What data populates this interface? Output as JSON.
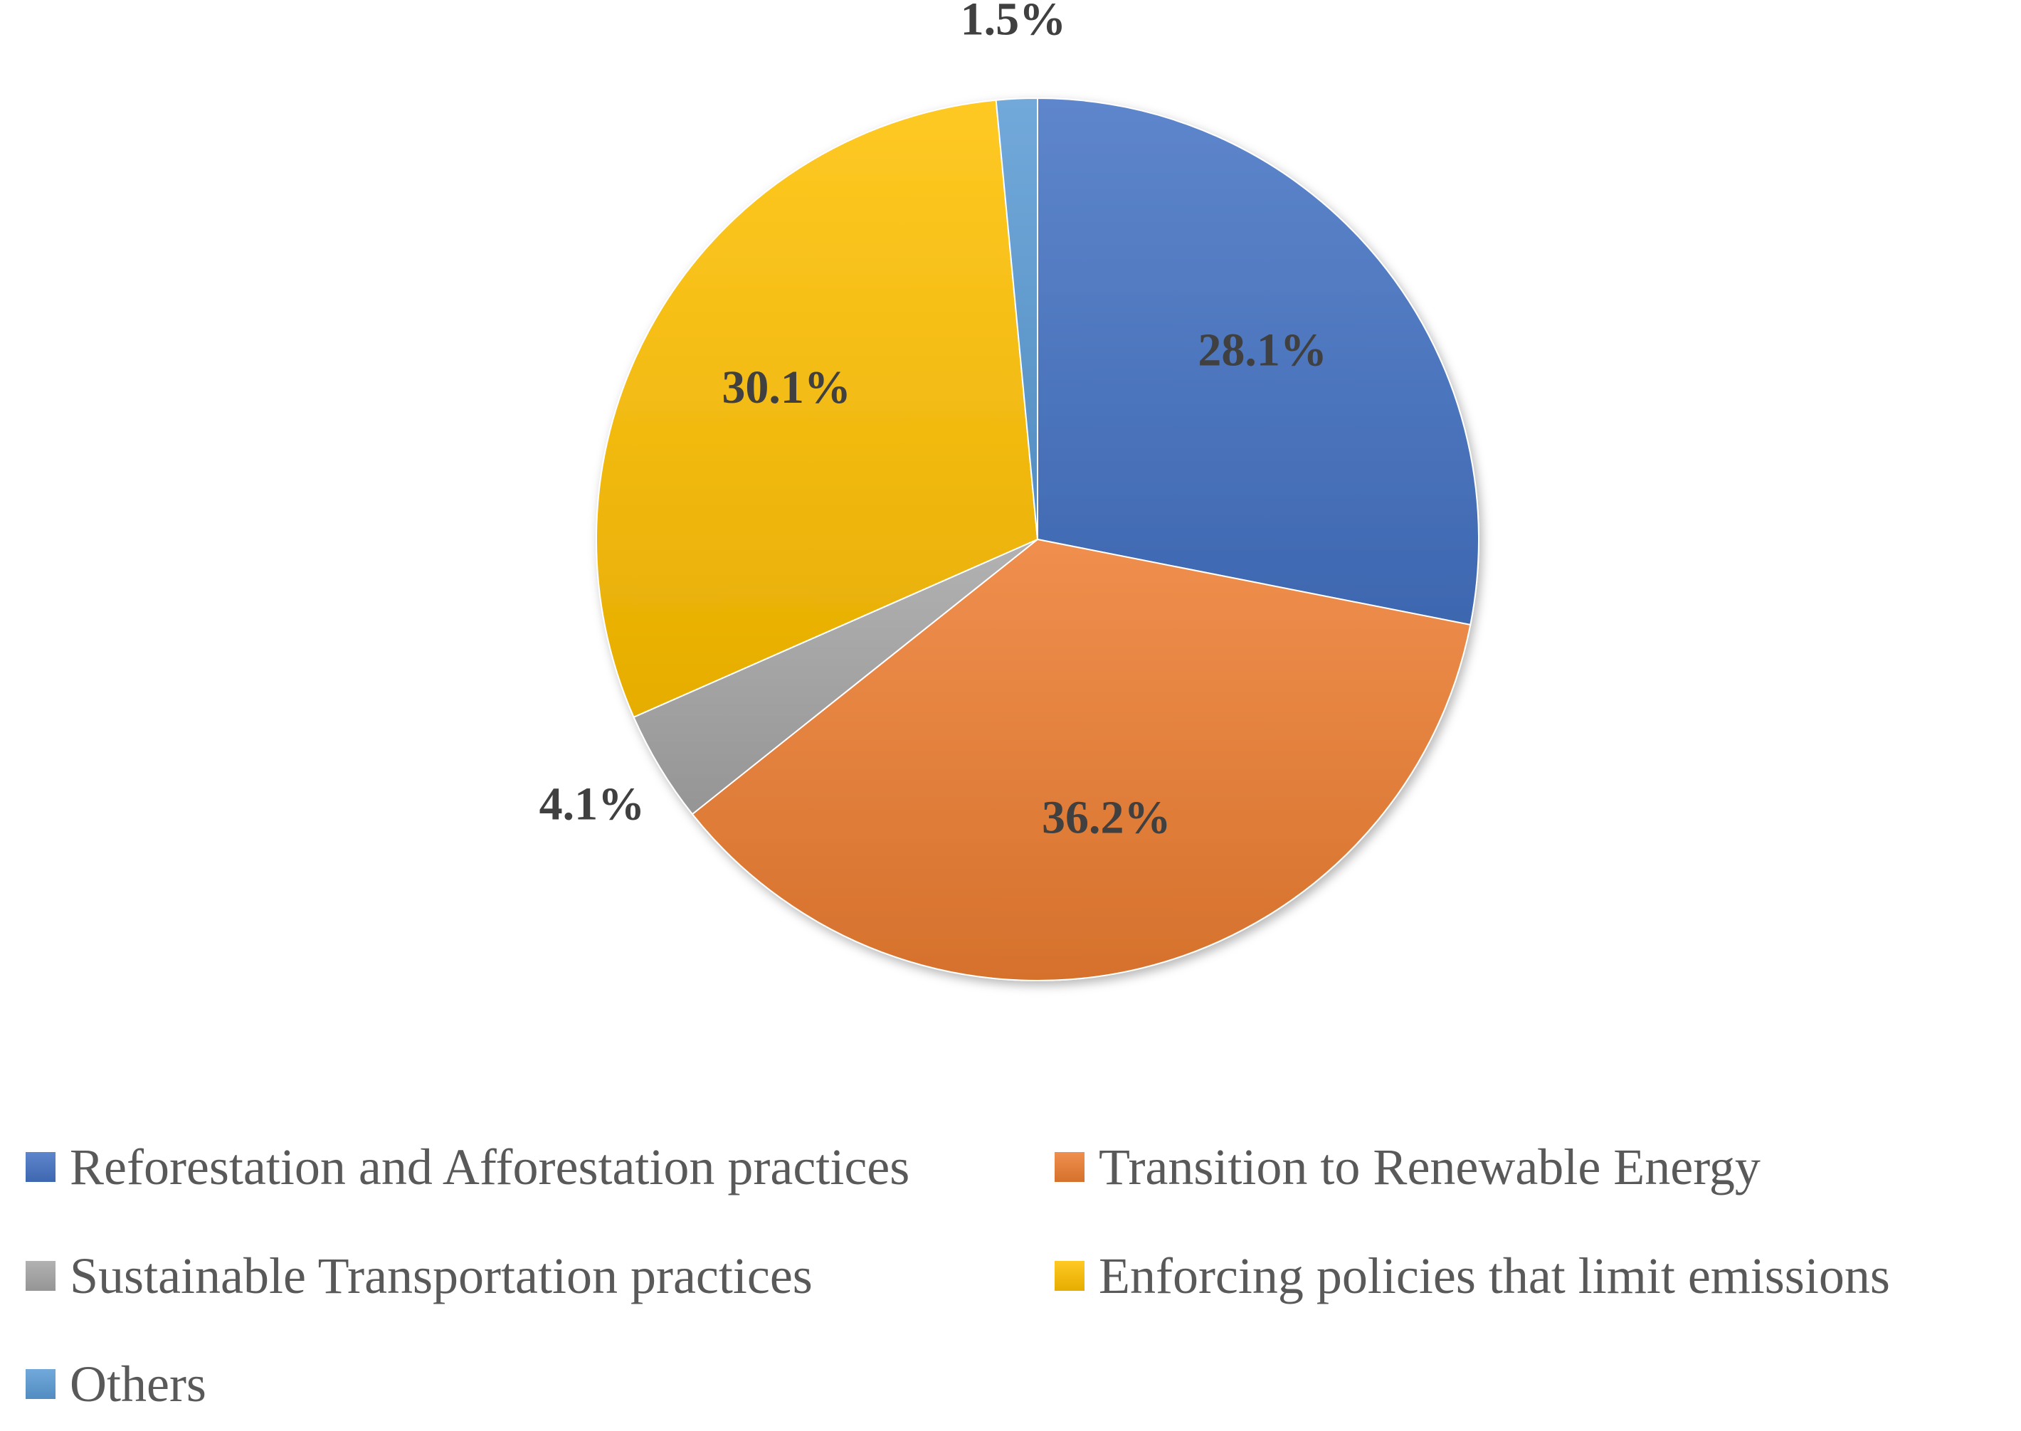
{
  "chart_data": {
    "type": "pie",
    "title": "",
    "slices": [
      {
        "label": "Reforestation and Afforestation practices",
        "value": 28.1,
        "display": "28.1%",
        "color": "#4472C4"
      },
      {
        "label": "Transition to Renewable Energy",
        "value": 36.2,
        "display": "36.2%",
        "color": "#ED7D31"
      },
      {
        "label": "Sustainable Transportation practices",
        "value": 4.1,
        "display": "4.1%",
        "color": "#A5A5A5"
      },
      {
        "label": "Enforcing policies that limit emissions",
        "value": 30.1,
        "display": "30.1%",
        "color": "#FFC000"
      },
      {
        "label": "Others",
        "value": 1.5,
        "display": "1.5%",
        "color": "#5B9BD5"
      }
    ],
    "start_angle": "12 o'clock",
    "direction": "clockwise",
    "legend_position": "bottom"
  }
}
